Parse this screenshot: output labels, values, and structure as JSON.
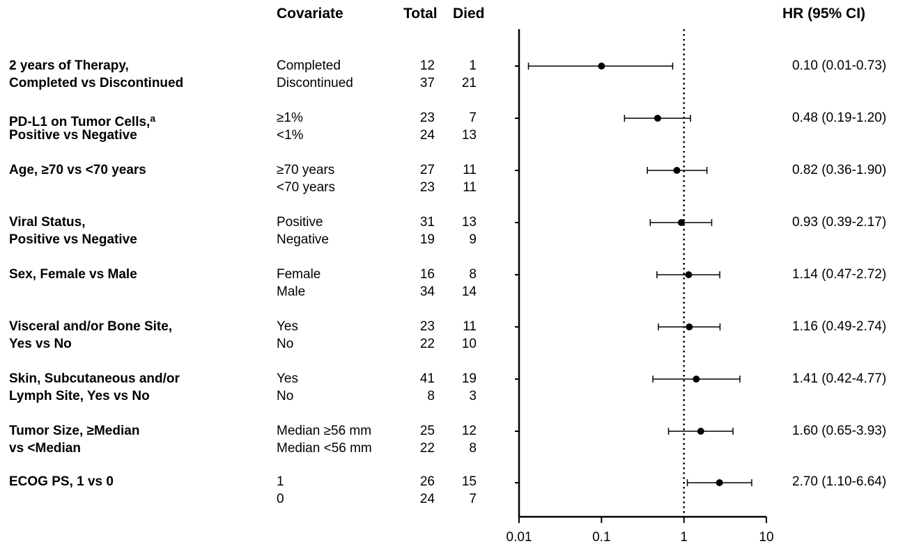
{
  "headers": {
    "covariate": "Covariate",
    "total": "Total",
    "died": "Died",
    "hr": "HR (95% CI)"
  },
  "rows": [
    {
      "label1": "2 years of Therapy,",
      "label2": "Completed vs Discontinued",
      "footnote": "",
      "g1": "Completed",
      "g2": "Discontinued",
      "t1": "12",
      "d1": "1",
      "t2": "37",
      "d2": "21",
      "hr": 0.1,
      "lo": 0.013,
      "hi": 0.73,
      "hr_text": "0.10 (0.01-0.73)"
    },
    {
      "label1": "PD-L1 on Tumor Cells,",
      "label2": "Positive vs Negative",
      "footnote": "a",
      "g1": "≥1%",
      "g2": "<1%",
      "t1": "23",
      "d1": "7",
      "t2": "24",
      "d2": "13",
      "hr": 0.48,
      "lo": 0.19,
      "hi": 1.2,
      "hr_text": "0.48 (0.19-1.20)"
    },
    {
      "label1": "Age, ≥70 vs <70 years",
      "label2": "",
      "footnote": "",
      "g1": "≥70 years",
      "g2": "<70 years",
      "t1": "27",
      "d1": "11",
      "t2": "23",
      "d2": "11",
      "hr": 0.82,
      "lo": 0.36,
      "hi": 1.9,
      "hr_text": "0.82 (0.36-1.90)"
    },
    {
      "label1": "Viral Status,",
      "label2": "Positive vs Negative",
      "footnote": "",
      "g1": "Positive",
      "g2": "Negative",
      "t1": "31",
      "d1": "13",
      "t2": "19",
      "d2": "9",
      "hr": 0.93,
      "lo": 0.39,
      "hi": 2.17,
      "hr_text": "0.93 (0.39-2.17)"
    },
    {
      "label1": "Sex, Female vs Male",
      "label2": "",
      "footnote": "",
      "g1": "Female",
      "g2": "Male",
      "t1": "16",
      "d1": "8",
      "t2": "34",
      "d2": "14",
      "hr": 1.14,
      "lo": 0.47,
      "hi": 2.72,
      "hr_text": "1.14 (0.47-2.72)"
    },
    {
      "label1": "Visceral and/or Bone Site,",
      "label2": "Yes vs No",
      "footnote": "",
      "g1": "Yes",
      "g2": "No",
      "t1": "23",
      "d1": "11",
      "t2": "22",
      "d2": "10",
      "hr": 1.16,
      "lo": 0.49,
      "hi": 2.74,
      "hr_text": "1.16 (0.49-2.74)"
    },
    {
      "label1": "Skin, Subcutaneous and/or",
      "label2": "Lymph Site, Yes vs No",
      "footnote": "",
      "g1": "Yes",
      "g2": "No",
      "t1": "41",
      "d1": "19",
      "t2": "8",
      "d2": "3",
      "hr": 1.41,
      "lo": 0.42,
      "hi": 4.77,
      "hr_text": "1.41 (0.42-4.77)"
    },
    {
      "label1": "Tumor Size, ≥Median",
      "label2": "vs <Median",
      "footnote": "",
      "g1": "Median ≥56 mm",
      "g2": "Median <56 mm",
      "t1": "25",
      "d1": "12",
      "t2": "22",
      "d2": "8",
      "hr": 1.6,
      "lo": 0.65,
      "hi": 3.93,
      "hr_text": "1.60 (0.65-3.93)"
    },
    {
      "label1": "ECOG PS, 1 vs 0",
      "label2": "",
      "footnote": "",
      "g1": "1",
      "g2": "0",
      "t1": "26",
      "d1": "15",
      "t2": "24",
      "d2": "7",
      "hr": 2.7,
      "lo": 1.1,
      "hi": 6.64,
      "hr_text": "2.70 (1.10-6.64)"
    }
  ],
  "chart_data": {
    "type": "forest",
    "scale": "log",
    "xlim": [
      0.01,
      10
    ],
    "xticks": [
      "0.01",
      "0.1",
      "1",
      "10"
    ],
    "tick_values": [
      0.01,
      0.1,
      1,
      10
    ],
    "reference_line": 1,
    "categories": [
      "2 years of Therapy, Completed vs Discontinued",
      "PD-L1 on Tumor Cells, Positive vs Negative",
      "Age, ≥70 vs <70 years",
      "Viral Status, Positive vs Negative",
      "Sex, Female vs Male",
      "Visceral and/or Bone Site, Yes vs No",
      "Skin, Subcutaneous and/or Lymph Site, Yes vs No",
      "Tumor Size, ≥Median vs <Median",
      "ECOG PS, 1 vs 0"
    ],
    "hr": [
      0.1,
      0.48,
      0.82,
      0.93,
      1.14,
      1.16,
      1.41,
      1.6,
      2.7
    ],
    "ci_low": [
      0.013,
      0.19,
      0.36,
      0.39,
      0.47,
      0.49,
      0.42,
      0.65,
      1.1
    ],
    "ci_high": [
      0.73,
      1.2,
      1.9,
      2.17,
      2.72,
      2.74,
      4.77,
      3.93,
      6.64
    ],
    "colors": {
      "ink": "#000000"
    }
  }
}
